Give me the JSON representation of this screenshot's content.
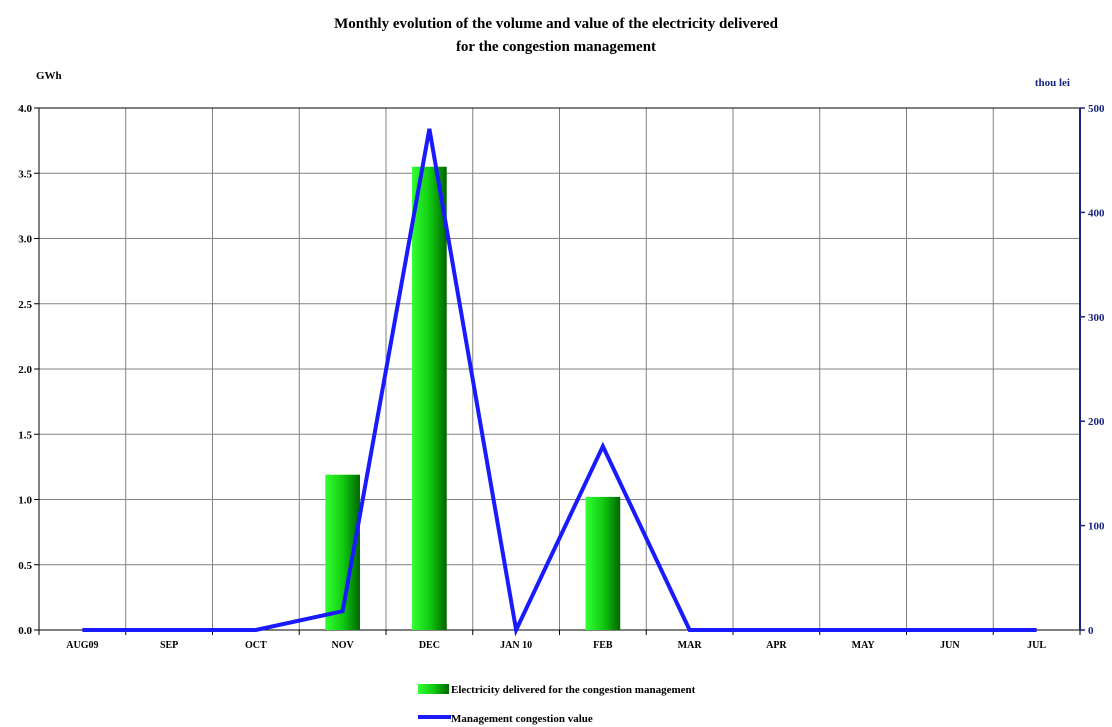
{
  "chart_data": {
    "type": "bar",
    "title_line1": "Monthly evolution of the volume and value of the electricity delivered",
    "title_line2": "for the congestion management",
    "ylabel_left": "GWh",
    "ylabel_right": "thou lei",
    "categories": [
      "AUG09",
      "SEP",
      "OCT",
      "NOV",
      "DEC",
      "JAN 10",
      "FEB",
      "MAR",
      "APR",
      "MAY",
      "JUN",
      "JUL"
    ],
    "ylim_left": [
      0,
      4.0
    ],
    "ylim_right": [
      0,
      500
    ],
    "yticks_left": [
      "0.0",
      "0.5",
      "1.0",
      "1.5",
      "2.0",
      "2.5",
      "3.0",
      "3.5",
      "4.0"
    ],
    "yticks_right": [
      "0",
      "100",
      "200",
      "300",
      "400",
      "500"
    ],
    "grid": true,
    "legend_position": "bottom",
    "series": [
      {
        "name": "Electricity delivered for the congestion management",
        "type": "bar",
        "axis": "left",
        "values": [
          0,
          0,
          0,
          1.19,
          3.55,
          0,
          1.02,
          0,
          0,
          0,
          0,
          0
        ],
        "color": "#00c000"
      },
      {
        "name": "Management congestion value",
        "type": "line",
        "axis": "right",
        "values": [
          0,
          0,
          0,
          18,
          480,
          0,
          176,
          0,
          0,
          0,
          0,
          0
        ],
        "color": "#1a1aff"
      }
    ]
  }
}
